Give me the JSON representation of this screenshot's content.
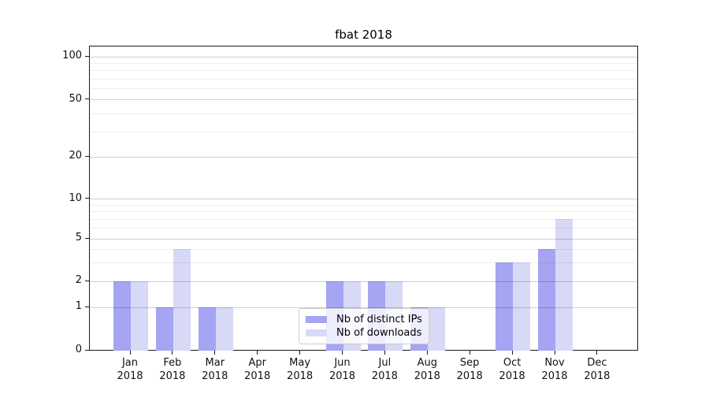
{
  "figure": {
    "title": "fbat 2018"
  },
  "chart_data": {
    "type": "bar",
    "title": "fbat 2018",
    "categories": [
      "Jan",
      "Feb",
      "Mar",
      "Apr",
      "May",
      "Jun",
      "Jul",
      "Aug",
      "Sep",
      "Oct",
      "Nov",
      "Dec"
    ],
    "category_year": "2018",
    "series": [
      {
        "name": "Nb of distinct IPs",
        "color": "#a5a5f3",
        "values": [
          2,
          1,
          1,
          0,
          0,
          2,
          2,
          1,
          0,
          3,
          4,
          0
        ]
      },
      {
        "name": "Nb of downloads",
        "color": "#d8d8f7",
        "values": [
          2,
          4,
          1,
          0,
          0,
          2,
          2,
          1,
          0,
          3,
          7,
          0
        ]
      }
    ],
    "yscale": "symlog",
    "yticks": [
      0,
      1,
      2,
      5,
      10,
      20,
      50,
      100
    ],
    "minor_yticks": [
      3,
      4,
      6,
      7,
      8,
      9,
      30,
      40,
      60,
      70,
      80,
      90
    ],
    "ylim": [
      0,
      120
    ],
    "grid": true,
    "legend": {
      "position": "lower center",
      "entries": [
        "Nb of distinct IPs",
        "Nb of downloads"
      ]
    }
  }
}
